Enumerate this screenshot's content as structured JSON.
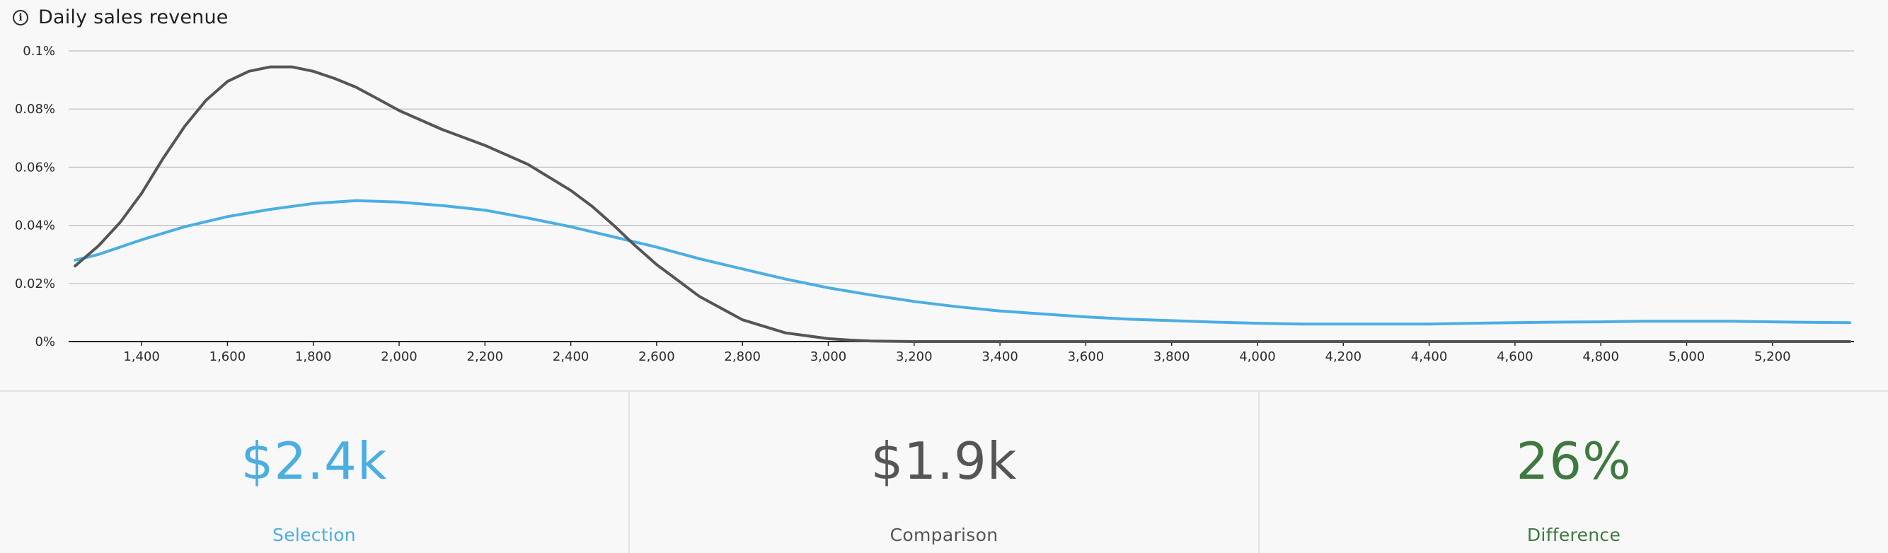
{
  "header": {
    "title": "Daily sales revenue",
    "info_icon": "info-icon"
  },
  "chart_data": {
    "type": "line",
    "title": "Daily sales revenue",
    "xlabel": "",
    "ylabel": "",
    "xlim": [
      1230,
      5390
    ],
    "ylim": [
      0,
      0.1
    ],
    "grid": true,
    "x_ticks": [
      "1,400",
      "1,600",
      "1,800",
      "2,000",
      "2,200",
      "2,400",
      "2,600",
      "2,800",
      "3,000",
      "3,200",
      "3,400",
      "3,600",
      "3,800",
      "4,000",
      "4,200",
      "4,400",
      "4,600",
      "4,800",
      "5,000",
      "5,200"
    ],
    "y_ticks": [
      "0%",
      "0.02%",
      "0.04%",
      "0.06%",
      "0.08%",
      "0.1%"
    ],
    "series": [
      {
        "color": "#4aaee3",
        "x": [
          1245,
          1300,
          1400,
          1500,
          1600,
          1700,
          1800,
          1900,
          2000,
          2100,
          2200,
          2300,
          2400,
          2500,
          2600,
          2700,
          2800,
          2900,
          3000,
          3100,
          3200,
          3300,
          3400,
          3500,
          3600,
          3700,
          3800,
          3900,
          4000,
          4100,
          4200,
          4300,
          4400,
          4500,
          4600,
          4700,
          4800,
          4900,
          5000,
          5100,
          5200,
          5300,
          5380
        ],
        "y": [
          0.028,
          0.03,
          0.035,
          0.0395,
          0.043,
          0.0455,
          0.0475,
          0.0485,
          0.048,
          0.0468,
          0.0452,
          0.0425,
          0.0395,
          0.036,
          0.0325,
          0.0285,
          0.025,
          0.0215,
          0.0185,
          0.016,
          0.0138,
          0.012,
          0.0105,
          0.0095,
          0.0085,
          0.0077,
          0.0072,
          0.0067,
          0.0063,
          0.006,
          0.006,
          0.006,
          0.006,
          0.0063,
          0.0065,
          0.0067,
          0.0068,
          0.007,
          0.007,
          0.007,
          0.0068,
          0.0066,
          0.0065
        ]
      },
      {
        "color": "#555555",
        "x": [
          1245,
          1300,
          1350,
          1400,
          1450,
          1500,
          1550,
          1600,
          1650,
          1700,
          1750,
          1800,
          1850,
          1900,
          1950,
          2000,
          2100,
          2200,
          2300,
          2400,
          2450,
          2500,
          2550,
          2600,
          2700,
          2800,
          2900,
          3000,
          3050,
          3100,
          3150,
          3200,
          3400,
          3600,
          3800,
          4000,
          4200,
          4400,
          4600,
          4800,
          5000,
          5200,
          5380
        ],
        "y": [
          0.026,
          0.033,
          0.041,
          0.051,
          0.063,
          0.074,
          0.083,
          0.0895,
          0.093,
          0.0945,
          0.0945,
          0.093,
          0.0905,
          0.0875,
          0.0835,
          0.0795,
          0.073,
          0.0675,
          0.061,
          0.052,
          0.0465,
          0.04,
          0.033,
          0.0265,
          0.0155,
          0.0075,
          0.003,
          0.001,
          0.0005,
          0.0002,
          0.0001,
          0,
          0,
          0,
          0,
          0,
          0,
          0,
          0,
          0,
          0,
          0,
          0
        ]
      }
    ]
  },
  "kpis": [
    {
      "value": "$2.4k",
      "label": "Selection",
      "color": "#4aaee3"
    },
    {
      "value": "$1.9k",
      "label": "Comparison",
      "color": "#555555"
    },
    {
      "value": "26%",
      "label": "Difference",
      "color": "#3e7a3f"
    }
  ],
  "colors": {
    "grid": "#bdbdbd",
    "axis": "#222222",
    "divider": "#e2e2e2"
  }
}
